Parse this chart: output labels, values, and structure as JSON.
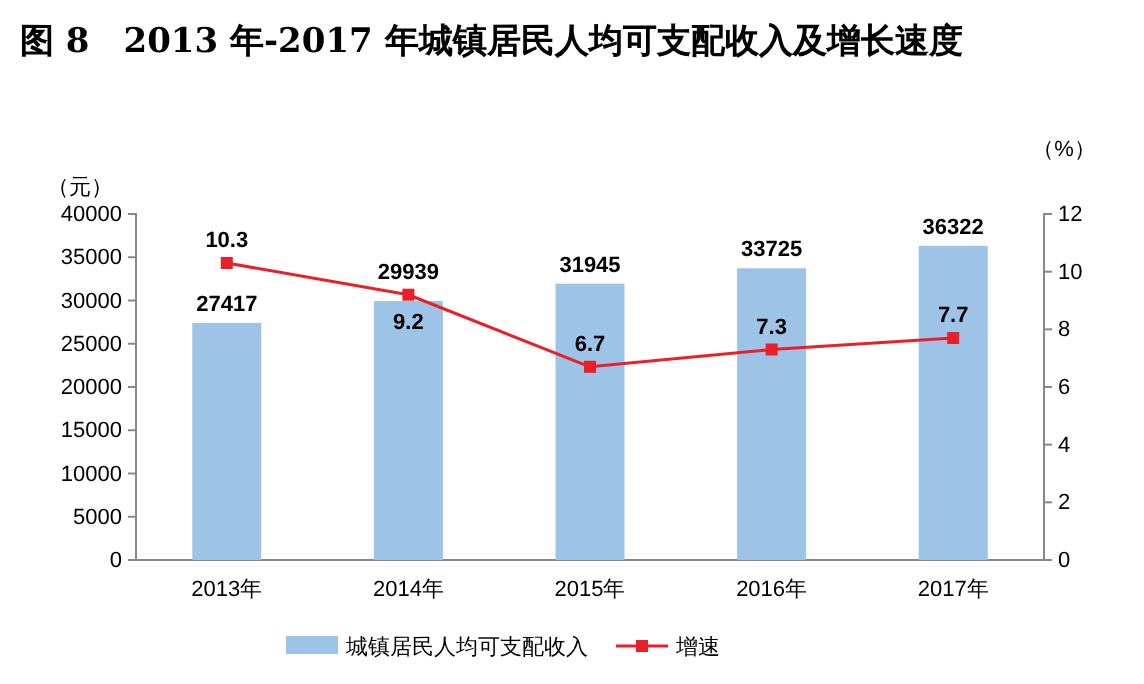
{
  "chart_data": {
    "type": "bar",
    "title": "图 8　2013 年-2017 年城镇居民人均可支配收入及增长速度",
    "ylabel": "（元）",
    "y2label": "（%）",
    "categories": [
      "2013年",
      "2014年",
      "2015年",
      "2016年",
      "2017年"
    ],
    "series": [
      {
        "name": "城镇居民人均可支配收入",
        "color": "#9dc3e6",
        "values": [
          27417,
          29939,
          31945,
          33725,
          36322
        ]
      },
      {
        "name": "增速",
        "type": "line",
        "axis": "y2",
        "color": "#e8202a",
        "marker": "square",
        "values": [
          10.3,
          9.2,
          6.7,
          7.3,
          7.7
        ]
      }
    ],
    "ylim": [
      0,
      40000
    ],
    "yticks": [
      0,
      5000,
      10000,
      15000,
      20000,
      25000,
      30000,
      35000,
      40000
    ],
    "y2lim": [
      0,
      12
    ],
    "y2ticks": [
      0,
      2,
      4,
      6,
      8,
      10,
      12
    ],
    "data_labels": true,
    "legend": "bottom",
    "grid": false
  }
}
